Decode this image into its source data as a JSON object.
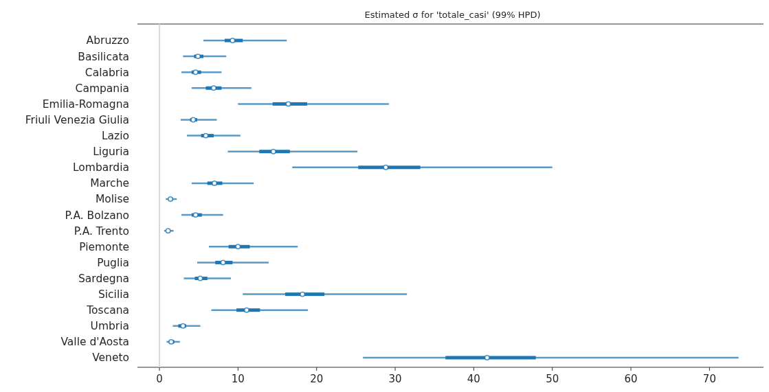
{
  "chart_data": {
    "type": "box",
    "orientation": "horizontal",
    "title": "Estimated σ for 'totale_casi' (99% HPD)",
    "categories": [
      "Abruzzo",
      "Basilicata",
      "Calabria",
      "Campania",
      "Emilia-Romagna",
      "Friuli Venezia Giulia",
      "Lazio",
      "Liguria",
      "Lombardia",
      "Marche",
      "Molise",
      "P.A. Bolzano",
      "P.A. Trento",
      "Piemonte",
      "Puglia",
      "Sardegna",
      "Sicilia",
      "Toscana",
      "Umbria",
      "Valle d'Aosta",
      "Veneto"
    ],
    "series": [
      {
        "color": "#1f77b4",
        "boxes": [
          {
            "low": 5.6,
            "q1": 8.3,
            "median": 9.3,
            "q3": 10.6,
            "high": 16.2
          },
          {
            "low": 3.0,
            "q1": 4.4,
            "median": 4.9,
            "q3": 5.6,
            "high": 8.5
          },
          {
            "low": 2.8,
            "q1": 4.1,
            "median": 4.6,
            "q3": 5.3,
            "high": 7.9
          },
          {
            "low": 4.1,
            "q1": 5.9,
            "median": 6.9,
            "q3": 7.9,
            "high": 11.7
          },
          {
            "low": 10.0,
            "q1": 14.4,
            "median": 16.4,
            "q3": 18.8,
            "high": 29.2
          },
          {
            "low": 2.7,
            "q1": 3.9,
            "median": 4.3,
            "q3": 4.8,
            "high": 7.3
          },
          {
            "low": 3.5,
            "q1": 5.3,
            "median": 5.9,
            "q3": 6.9,
            "high": 10.3
          },
          {
            "low": 8.7,
            "q1": 12.7,
            "median": 14.5,
            "q3": 16.6,
            "high": 25.2
          },
          {
            "low": 16.9,
            "q1": 25.3,
            "median": 28.8,
            "q3": 33.2,
            "high": 50.0
          },
          {
            "low": 4.1,
            "q1": 6.1,
            "median": 7.0,
            "q3": 8.0,
            "high": 12.0
          },
          {
            "low": 0.8,
            "q1": 1.2,
            "median": 1.4,
            "q3": 1.7,
            "high": 2.2
          },
          {
            "low": 2.8,
            "q1": 4.1,
            "median": 4.6,
            "q3": 5.4,
            "high": 8.1
          },
          {
            "low": 0.6,
            "q1": 0.9,
            "median": 1.1,
            "q3": 1.4,
            "high": 1.8
          },
          {
            "low": 6.3,
            "q1": 8.8,
            "median": 10.0,
            "q3": 11.5,
            "high": 17.6
          },
          {
            "low": 4.8,
            "q1": 7.1,
            "median": 8.1,
            "q3": 9.3,
            "high": 13.9
          },
          {
            "low": 3.1,
            "q1": 4.5,
            "median": 5.2,
            "q3": 6.1,
            "high": 9.1
          },
          {
            "low": 10.6,
            "q1": 16.0,
            "median": 18.2,
            "q3": 21.0,
            "high": 31.5
          },
          {
            "low": 6.6,
            "q1": 9.8,
            "median": 11.1,
            "q3": 12.8,
            "high": 18.9
          },
          {
            "low": 1.7,
            "q1": 2.4,
            "median": 3.0,
            "q3": 3.4,
            "high": 5.2
          },
          {
            "low": 0.9,
            "q1": 1.2,
            "median": 1.5,
            "q3": 1.9,
            "high": 2.6
          },
          {
            "low": 25.9,
            "q1": 36.4,
            "median": 41.7,
            "q3": 47.9,
            "high": 73.7
          }
        ]
      }
    ],
    "xlim": [
      -2.8,
      77.4
    ],
    "xticks": [
      0,
      10,
      20,
      30,
      40,
      50,
      60,
      70
    ],
    "ref_lines": [
      {
        "axis": "x",
        "value": 0,
        "color": "#d9d9d9"
      }
    ],
    "marker": "circle"
  }
}
